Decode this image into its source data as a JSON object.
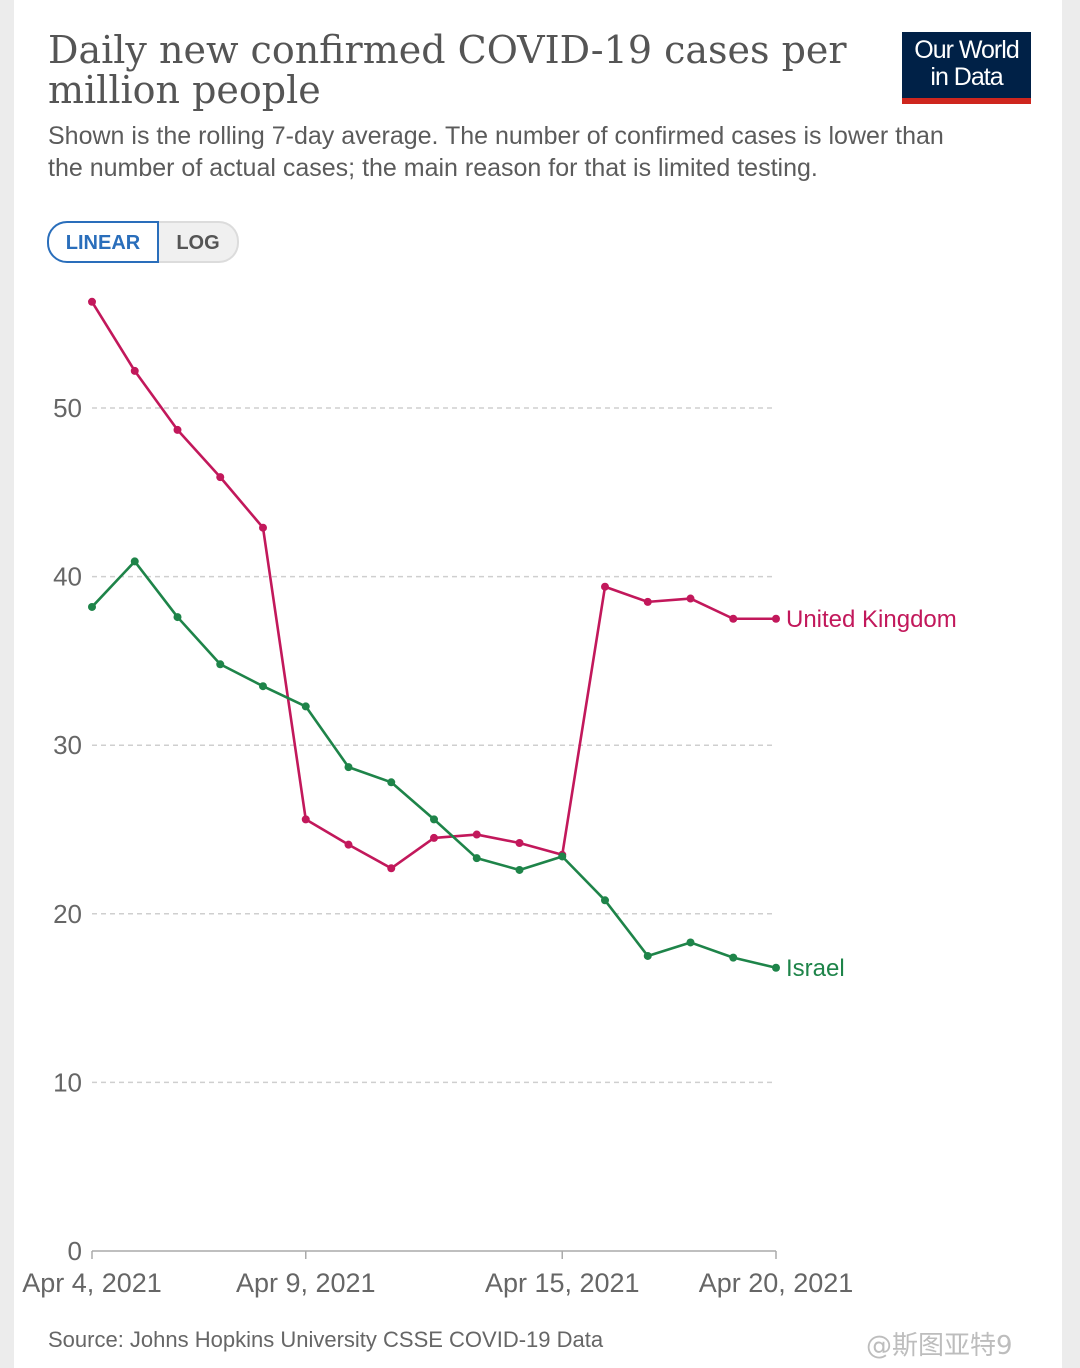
{
  "header": {
    "title": "Daily new confirmed COVID-19 cases per million people",
    "subtitle": "Shown is the rolling 7-day average. The number of confirmed cases is lower than the number of actual cases; the main reason for that is limited testing.",
    "logo_line1": "Our World",
    "logo_line2": "in Data"
  },
  "controls": {
    "linear_label": "LINEAR",
    "log_label": "LOG",
    "selected": "linear"
  },
  "footer": {
    "source": "Source: Johns Hopkins University CSSE COVID-19 Data",
    "watermark": "@斯图亚特9"
  },
  "colors": {
    "uk": "#c2185b",
    "israel": "#1e8449",
    "grid": "#cfcfcf",
    "axis_text": "#666666",
    "logo_bg": "#002147",
    "logo_bar": "#ce261e",
    "accent": "#2a6ebb"
  },
  "chart_data": {
    "type": "line",
    "title": "Daily new confirmed COVID-19 cases per million people",
    "x": [
      "2021-04-04",
      "2021-04-05",
      "2021-04-06",
      "2021-04-07",
      "2021-04-08",
      "2021-04-09",
      "2021-04-10",
      "2021-04-11",
      "2021-04-12",
      "2021-04-13",
      "2021-04-14",
      "2021-04-15",
      "2021-04-16",
      "2021-04-17",
      "2021-04-18",
      "2021-04-19",
      "2021-04-20"
    ],
    "x_ticks": [
      {
        "date": "2021-04-04",
        "label": "Apr 4, 2021"
      },
      {
        "date": "2021-04-09",
        "label": "Apr 9, 2021"
      },
      {
        "date": "2021-04-15",
        "label": "Apr 15, 2021"
      },
      {
        "date": "2021-04-20",
        "label": "Apr 20, 2021"
      }
    ],
    "y_ticks": [
      0,
      10,
      20,
      30,
      40,
      50
    ],
    "ylim": [
      0,
      56
    ],
    "grid": true,
    "legend": "inline-right",
    "series": [
      {
        "name": "United Kingdom",
        "color": "#c2185b",
        "values": [
          56.3,
          52.2,
          48.7,
          45.9,
          42.9,
          25.6,
          24.1,
          22.7,
          24.5,
          24.7,
          24.2,
          23.5,
          39.4,
          38.5,
          38.7,
          37.5,
          37.5
        ]
      },
      {
        "name": "Israel",
        "color": "#1e8449",
        "values": [
          38.2,
          40.9,
          37.6,
          34.8,
          33.5,
          32.3,
          28.7,
          27.8,
          25.6,
          23.3,
          22.6,
          23.4,
          20.8,
          17.5,
          18.3,
          17.4,
          16.8
        ]
      }
    ]
  }
}
